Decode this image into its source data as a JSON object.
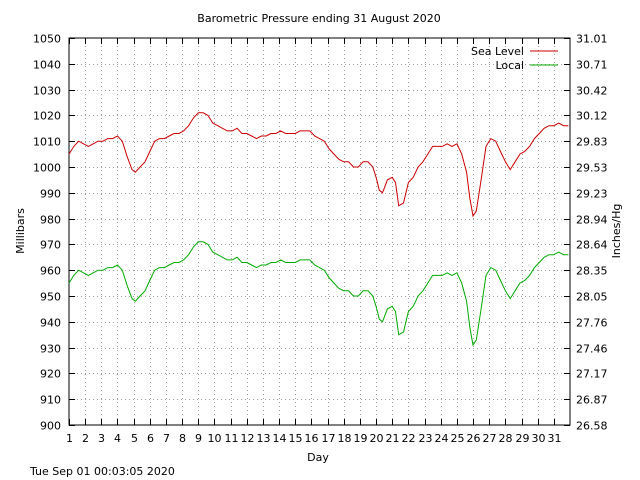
{
  "chart_data": {
    "type": "line",
    "title": "Barometric Pressure ending 31 August 2020",
    "xlabel": "Day",
    "ylabel": "Millibars",
    "y2label": "Inches/Hg",
    "timestamp": "Tue Sep 01 00:03:05 2020",
    "xlim": [
      1,
      32
    ],
    "ylim": [
      900,
      1050
    ],
    "xticks": [
      "1",
      "2",
      "3",
      "4",
      "5",
      "6",
      "7",
      "8",
      "9",
      "10",
      "11",
      "12",
      "13",
      "14",
      "15",
      "16",
      "17",
      "18",
      "19",
      "20",
      "21",
      "22",
      "23",
      "24",
      "25",
      "26",
      "27",
      "28",
      "29",
      "30",
      "31"
    ],
    "yticks": [
      900,
      910,
      920,
      930,
      940,
      950,
      960,
      970,
      980,
      990,
      1000,
      1010,
      1020,
      1030,
      1040,
      1050
    ],
    "y2ticks": [
      "26.58",
      "26.87",
      "27.17",
      "27.46",
      "27.76",
      "28.05",
      "28.35",
      "28.64",
      "28.94",
      "29.23",
      "29.53",
      "29.83",
      "30.12",
      "30.42",
      "30.71",
      "31.01"
    ],
    "grid": true,
    "legend_position": "top-right",
    "series": [
      {
        "name": "Sea Level",
        "color": "#cc0000",
        "x": [
          1.0,
          1.3,
          1.6,
          1.9,
          2.2,
          2.5,
          2.8,
          3.1,
          3.4,
          3.7,
          4.0,
          4.3,
          4.6,
          4.9,
          5.1,
          5.4,
          5.7,
          6.0,
          6.3,
          6.6,
          6.9,
          7.2,
          7.5,
          7.8,
          8.1,
          8.4,
          8.7,
          9.0,
          9.3,
          9.6,
          9.9,
          10.2,
          10.5,
          10.8,
          11.1,
          11.4,
          11.7,
          12.0,
          12.3,
          12.6,
          12.9,
          13.2,
          13.5,
          13.8,
          14.1,
          14.4,
          14.7,
          15.0,
          15.3,
          15.6,
          15.9,
          16.2,
          16.5,
          16.8,
          17.1,
          17.4,
          17.7,
          18.0,
          18.3,
          18.6,
          18.9,
          19.2,
          19.5,
          19.8,
          20.0,
          20.2,
          20.4,
          20.7,
          21.0,
          21.2,
          21.4,
          21.7,
          22.0,
          22.3,
          22.6,
          22.9,
          23.2,
          23.5,
          23.8,
          24.1,
          24.4,
          24.7,
          25.0,
          25.3,
          25.6,
          25.8,
          26.0,
          26.2,
          26.5,
          26.8,
          27.1,
          27.4,
          27.7,
          28.0,
          28.3,
          28.6,
          28.9,
          29.2,
          29.5,
          29.8,
          30.1,
          30.4,
          30.7,
          31.0,
          31.3,
          31.6,
          31.9
        ],
        "values": [
          1005,
          1008,
          1010,
          1009,
          1008,
          1009,
          1010,
          1010,
          1011,
          1011,
          1012,
          1010,
          1004,
          999,
          998,
          1000,
          1002,
          1006,
          1010,
          1011,
          1011,
          1012,
          1013,
          1013,
          1014,
          1016,
          1019,
          1021,
          1021,
          1020,
          1017,
          1016,
          1015,
          1014,
          1014,
          1015,
          1013,
          1013,
          1012,
          1011,
          1012,
          1012,
          1013,
          1013,
          1014,
          1013,
          1013,
          1013,
          1014,
          1014,
          1014,
          1012,
          1011,
          1010,
          1007,
          1005,
          1003,
          1002,
          1002,
          1000,
          1000,
          1002,
          1002,
          1000,
          996,
          991,
          990,
          995,
          996,
          994,
          985,
          986,
          994,
          996,
          1000,
          1002,
          1005,
          1008,
          1008,
          1008,
          1009,
          1008,
          1009,
          1005,
          998,
          988,
          981,
          983,
          995,
          1008,
          1011,
          1010,
          1006,
          1002,
          999,
          1002,
          1005,
          1006,
          1008,
          1011,
          1013,
          1015,
          1016,
          1016,
          1017,
          1016,
          1016
        ]
      },
      {
        "name": "Local",
        "color": "#00aa00",
        "x": [
          1.0,
          1.3,
          1.6,
          1.9,
          2.2,
          2.5,
          2.8,
          3.1,
          3.4,
          3.7,
          4.0,
          4.3,
          4.6,
          4.9,
          5.1,
          5.4,
          5.7,
          6.0,
          6.3,
          6.6,
          6.9,
          7.2,
          7.5,
          7.8,
          8.1,
          8.4,
          8.7,
          9.0,
          9.3,
          9.6,
          9.9,
          10.2,
          10.5,
          10.8,
          11.1,
          11.4,
          11.7,
          12.0,
          12.3,
          12.6,
          12.9,
          13.2,
          13.5,
          13.8,
          14.1,
          14.4,
          14.7,
          15.0,
          15.3,
          15.6,
          15.9,
          16.2,
          16.5,
          16.8,
          17.1,
          17.4,
          17.7,
          18.0,
          18.3,
          18.6,
          18.9,
          19.2,
          19.5,
          19.8,
          20.0,
          20.2,
          20.4,
          20.7,
          21.0,
          21.2,
          21.4,
          21.7,
          22.0,
          22.3,
          22.6,
          22.9,
          23.2,
          23.5,
          23.8,
          24.1,
          24.4,
          24.7,
          25.0,
          25.3,
          25.6,
          25.8,
          26.0,
          26.2,
          26.5,
          26.8,
          27.1,
          27.4,
          27.7,
          28.0,
          28.3,
          28.6,
          28.9,
          29.2,
          29.5,
          29.8,
          30.1,
          30.4,
          30.7,
          31.0,
          31.3,
          31.6,
          31.9
        ],
        "values": [
          955,
          958,
          960,
          959,
          958,
          959,
          960,
          960,
          961,
          961,
          962,
          960,
          954,
          949,
          948,
          950,
          952,
          956,
          960,
          961,
          961,
          962,
          963,
          963,
          964,
          966,
          969,
          971,
          971,
          970,
          967,
          966,
          965,
          964,
          964,
          965,
          963,
          963,
          962,
          961,
          962,
          962,
          963,
          963,
          964,
          963,
          963,
          963,
          964,
          964,
          964,
          962,
          961,
          960,
          957,
          955,
          953,
          952,
          952,
          950,
          950,
          952,
          952,
          950,
          946,
          941,
          940,
          945,
          946,
          944,
          935,
          936,
          944,
          946,
          950,
          952,
          955,
          958,
          958,
          958,
          959,
          958,
          959,
          955,
          948,
          938,
          931,
          933,
          945,
          958,
          961,
          960,
          956,
          952,
          949,
          952,
          955,
          956,
          958,
          961,
          963,
          965,
          966,
          966,
          967,
          966,
          966
        ]
      }
    ]
  }
}
